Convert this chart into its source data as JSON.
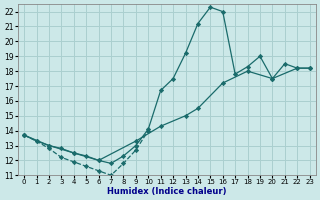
{
  "xlabel": "Humidex (Indice chaleur)",
  "bg_color": "#cce8e8",
  "grid_color": "#aacfcf",
  "line_color": "#1a6b6b",
  "xlim": [
    -0.5,
    23.5
  ],
  "ylim": [
    11,
    22.5
  ],
  "xticks": [
    0,
    1,
    2,
    3,
    4,
    5,
    6,
    7,
    8,
    9,
    10,
    11,
    12,
    13,
    14,
    15,
    16,
    17,
    18,
    19,
    20,
    21,
    22,
    23
  ],
  "yticks": [
    11,
    12,
    13,
    14,
    15,
    16,
    17,
    18,
    19,
    20,
    21,
    22
  ],
  "series": [
    {
      "x": [
        0,
        1,
        2,
        3,
        4,
        5,
        6,
        7,
        8,
        9,
        10,
        11,
        12,
        13,
        14,
        15,
        16,
        17,
        18,
        19,
        20,
        21,
        22,
        23
      ],
      "y": [
        13.7,
        13.3,
        13.0,
        12.8,
        12.5,
        12.3,
        12.0,
        11.8,
        12.3,
        13.0,
        14.1,
        16.7,
        17.5,
        19.2,
        21.2,
        22.3,
        22.0,
        17.8,
        18.3,
        19.0,
        17.5,
        18.5,
        18.2,
        18.2
      ],
      "linestyle": "-"
    },
    {
      "x": [
        0,
        2,
        4,
        6,
        9,
        11,
        13,
        14,
        16,
        18,
        20,
        22,
        23
      ],
      "y": [
        13.7,
        13.0,
        12.5,
        12.0,
        13.3,
        14.3,
        15.0,
        15.5,
        17.2,
        18.0,
        17.5,
        18.2,
        18.2
      ],
      "linestyle": "-"
    },
    {
      "x": [
        0,
        1,
        2,
        3,
        4,
        5,
        6,
        7,
        8,
        9,
        10
      ],
      "y": [
        13.7,
        13.3,
        12.8,
        12.2,
        11.9,
        11.6,
        11.3,
        11.0,
        11.8,
        12.7,
        14.0
      ],
      "linestyle": "--"
    }
  ]
}
